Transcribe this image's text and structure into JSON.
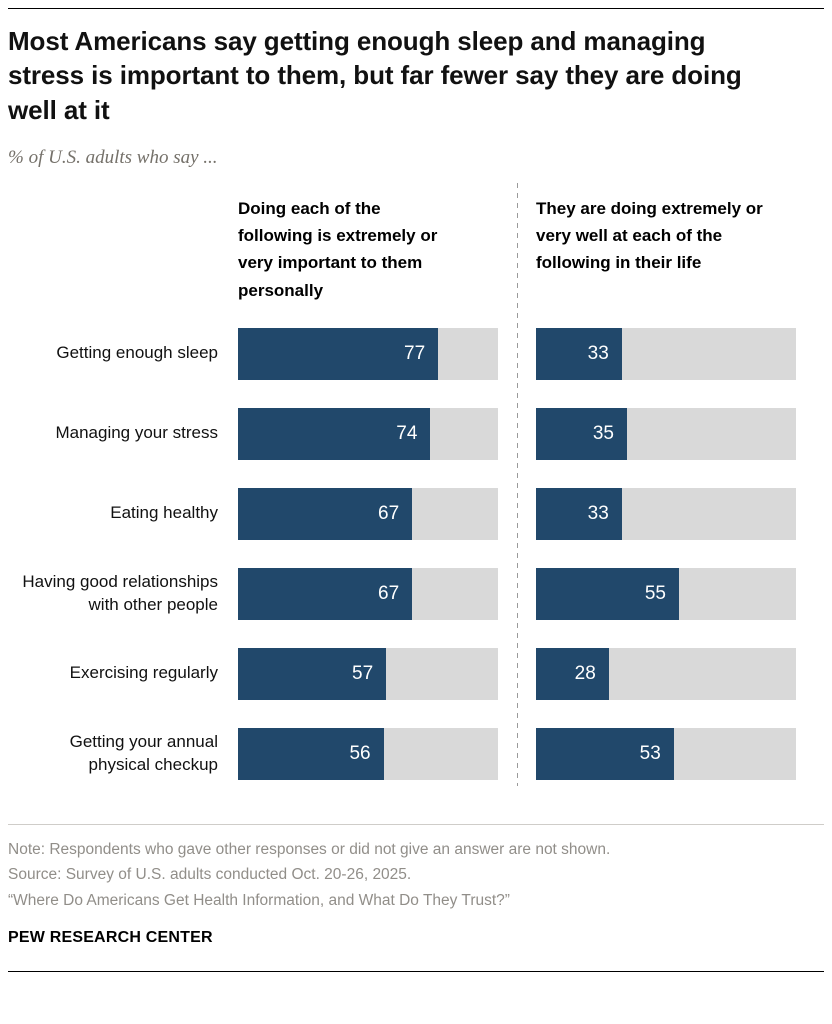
{
  "header": {
    "title": "Most Americans say getting enough sleep and managing stress is important to them, but far fewer say they are doing well at it",
    "subtitle": "% of U.S. adults who say ..."
  },
  "chart_data": {
    "type": "bar",
    "orientation": "horizontal",
    "categories": [
      "Getting enough sleep",
      "Managing your stress",
      "Eating healthy",
      "Having good relationships with other people",
      "Exercising regularly",
      "Getting your annual physical checkup"
    ],
    "series": [
      {
        "name": "Doing each of the following is extremely or very important to them personally",
        "values": [
          77,
          74,
          67,
          67,
          57,
          56
        ]
      },
      {
        "name": "They are doing extremely or very well at each of the following in their life",
        "values": [
          33,
          35,
          33,
          55,
          28,
          53
        ]
      }
    ],
    "xlim": [
      0,
      100
    ],
    "value_labels": "inside-end",
    "grid": false,
    "colors": {
      "bar": "#21486b",
      "track": "#d9d9d9",
      "divider": "#9a9a9a"
    }
  },
  "footer": {
    "note": "Note: Respondents who gave other responses or did not give an answer are not shown.",
    "source": "Source: Survey of U.S. adults conducted Oct. 20-26, 2025.",
    "citation": "“Where Do Americans Get Health Information, and What Do They Trust?”",
    "brand": "PEW RESEARCH CENTER"
  }
}
